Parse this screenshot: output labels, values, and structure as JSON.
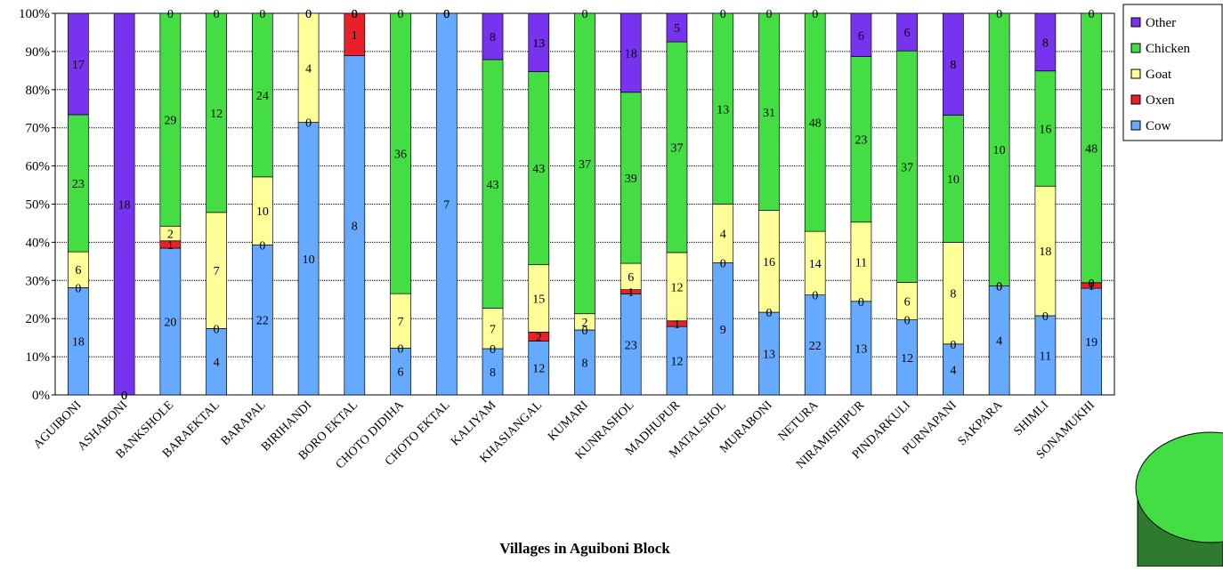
{
  "chart_data": {
    "type": "bar",
    "stacked": "percent",
    "x_label": "Villages in Aguiboni Block",
    "categories": [
      "AGUIBONI",
      "ASHABONI",
      "BANKSHOLE",
      "BARAEKTAL",
      "BARAPAL",
      "BIRIHANDI",
      "BORO EKTAL",
      "CHOTO DIDIHA",
      "CHOTO EKTAL",
      "KALIYAM",
      "KHASIANGAL",
      "KUMARI",
      "KUNRASHOL",
      "MADHUPUR",
      "MATALSHOL",
      "MURABONI",
      "NETURA",
      "NIRAMISHIPUR",
      "PINDARKULI",
      "PURNAPANI",
      "SAKPARA",
      "SHIMLI",
      "SONAMUKHI"
    ],
    "series": [
      {
        "name": "Cow",
        "color": "#66aaff",
        "values": [
          18,
          0,
          20,
          4,
          22,
          10,
          8,
          6,
          7,
          8,
          12,
          8,
          23,
          12,
          9,
          13,
          22,
          13,
          12,
          4,
          4,
          11,
          19
        ]
      },
      {
        "name": "Oxen",
        "color": "#e8202a",
        "values": [
          0,
          0,
          1,
          0,
          0,
          0,
          1,
          0,
          0,
          0,
          2,
          0,
          1,
          1,
          0,
          0,
          0,
          0,
          0,
          0,
          0,
          0,
          1
        ]
      },
      {
        "name": "Goat",
        "color": "#ffff99",
        "values": [
          6,
          0,
          2,
          7,
          10,
          4,
          0,
          7,
          0,
          7,
          15,
          2,
          6,
          12,
          4,
          16,
          14,
          11,
          6,
          8,
          0,
          18,
          0
        ]
      },
      {
        "name": "Chicken",
        "color": "#44dd44",
        "values": [
          23,
          0,
          29,
          12,
          24,
          0,
          0,
          36,
          0,
          43,
          43,
          37,
          39,
          37,
          13,
          31,
          48,
          23,
          37,
          10,
          10,
          16,
          48
        ]
      },
      {
        "name": "Other",
        "color": "#7733ee",
        "values": [
          17,
          18,
          0,
          0,
          0,
          0,
          0,
          0,
          0,
          8,
          13,
          0,
          18,
          5,
          0,
          0,
          0,
          6,
          6,
          8,
          0,
          8,
          0
        ]
      }
    ],
    "ylim": [
      0,
      100
    ],
    "yticks": [
      {
        "value": 0,
        "label": "0%"
      },
      {
        "value": 10,
        "label": "10%"
      },
      {
        "value": 20,
        "label": "20%"
      },
      {
        "value": 30,
        "label": "30%"
      },
      {
        "value": 40,
        "label": "40%"
      },
      {
        "value": 50,
        "label": "50%"
      },
      {
        "value": 60,
        "label": "60%"
      },
      {
        "value": 70,
        "label": "70%"
      },
      {
        "value": 80,
        "label": "80%"
      },
      {
        "value": 90,
        "label": "90%"
      },
      {
        "value": 100,
        "label": "100%"
      }
    ],
    "grid": true,
    "legend": "top-right"
  }
}
